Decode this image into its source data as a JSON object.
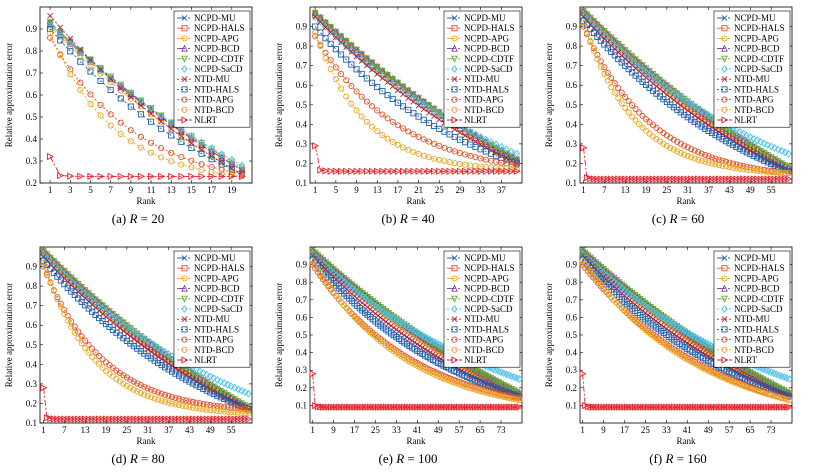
{
  "figure": {
    "methods": [
      {
        "name": "NCPD-MU",
        "color": "#1f5fa8",
        "marker": "x",
        "dash": "8,3,2,3"
      },
      {
        "name": "NCPD-HALS",
        "color": "#e0532a",
        "marker": "square",
        "dash": "8,3,2,3"
      },
      {
        "name": "NCPD-APG",
        "color": "#e9a825",
        "marker": "circle",
        "dash": "8,3,2,3"
      },
      {
        "name": "NCPD-BCD",
        "color": "#7b3a9a",
        "marker": "triangle",
        "dash": "8,3,2,3"
      },
      {
        "name": "NCPD-CDTF",
        "color": "#6aa83a",
        "marker": "tridown",
        "dash": "8,3,2,3"
      },
      {
        "name": "NCPD-SaCD",
        "color": "#4fc0e8",
        "marker": "diamond",
        "dash": "2,2"
      },
      {
        "name": "NTD-MU",
        "color": "#b0203a",
        "marker": "x",
        "dash": "2,2"
      },
      {
        "name": "NTD-HALS",
        "color": "#1f5fa8",
        "marker": "square",
        "dash": "2,2"
      },
      {
        "name": "NTD-APG",
        "color": "#e0532a",
        "marker": "circle",
        "dash": "2,2"
      },
      {
        "name": "NTD-BCD",
        "color": "#e9a825",
        "marker": "circle",
        "dash": "2,2"
      },
      {
        "name": "NLRT",
        "color": "#e6202a",
        "marker": "triright",
        "dash": "6,2,2,2"
      }
    ],
    "ylabel": "Relative approximation error",
    "xlabel": "Rank"
  },
  "chart_data": [
    {
      "type": "line",
      "caption": "(a) R = 20",
      "caption_prefix": "(a) ",
      "caption_var": "R",
      "caption_rest": " = 20",
      "xlim": [
        0,
        21
      ],
      "xticks": [
        1,
        3,
        5,
        7,
        9,
        11,
        13,
        15,
        17,
        19
      ],
      "ylim": [
        0.2,
        1.0
      ],
      "yticks": [
        0.2,
        0.3,
        0.4,
        0.5,
        0.6,
        0.7,
        0.8,
        0.9
      ],
      "xlabel": "Rank",
      "ylabel": "Relative approximation error",
      "x": [
        1,
        2,
        3,
        4,
        5,
        6,
        7,
        8,
        9,
        10,
        11,
        12,
        13,
        14,
        15,
        16,
        17,
        18,
        19,
        20
      ],
      "series": [
        {
          "name": "NCPD-MU",
          "start": 0.93,
          "final": 0.26,
          "k": 2.3
        },
        {
          "name": "NCPD-HALS",
          "start": 0.92,
          "final": 0.26,
          "k": 2.3
        },
        {
          "name": "NCPD-APG",
          "start": 0.91,
          "final": 0.24,
          "k": 2.2
        },
        {
          "name": "NCPD-BCD",
          "start": 0.93,
          "final": 0.26,
          "k": 2.3
        },
        {
          "name": "NCPD-CDTF",
          "start": 0.93,
          "final": 0.27,
          "k": 2.3
        },
        {
          "name": "NCPD-SaCD",
          "start": 0.92,
          "final": 0.28,
          "k": 2.1
        },
        {
          "name": "NTD-MU",
          "start": 0.96,
          "final": 0.24,
          "k": 1.6
        },
        {
          "name": "NTD-HALS",
          "start": 0.9,
          "final": 0.24,
          "k": 1.3
        },
        {
          "name": "NTD-APG",
          "start": 0.86,
          "final": 0.24,
          "k": 0.55
        },
        {
          "name": "NTD-BCD",
          "start": 0.88,
          "final": 0.23,
          "k": 0.4
        },
        {
          "name": "NLRT",
          "start": 0.32,
          "final": 0.23,
          "k": 0.1
        }
      ]
    },
    {
      "type": "line",
      "caption": "(b) R = 40",
      "caption_prefix": "(b) ",
      "caption_var": "R",
      "caption_rest": " = 40",
      "xlim": [
        0,
        41
      ],
      "xticks": [
        1,
        5,
        9,
        13,
        17,
        21,
        25,
        29,
        33,
        37
      ],
      "ylim": [
        0.1,
        1.0
      ],
      "yticks": [
        0.1,
        0.2,
        0.3,
        0.4,
        0.5,
        0.6,
        0.7,
        0.8,
        0.9
      ],
      "xlabel": "Rank",
      "ylabel": "Relative approximation error",
      "x": [
        1,
        40
      ],
      "series": [
        {
          "name": "NCPD-MU",
          "start": 0.97,
          "final": 0.22,
          "k": 2.2
        },
        {
          "name": "NCPD-HALS",
          "start": 0.96,
          "final": 0.21,
          "k": 2.1
        },
        {
          "name": "NCPD-APG",
          "start": 0.96,
          "final": 0.2,
          "k": 2.0
        },
        {
          "name": "NCPD-BCD",
          "start": 0.97,
          "final": 0.22,
          "k": 2.2
        },
        {
          "name": "NCPD-CDTF",
          "start": 0.97,
          "final": 0.22,
          "k": 2.2
        },
        {
          "name": "NCPD-SaCD",
          "start": 0.95,
          "final": 0.25,
          "k": 1.4
        },
        {
          "name": "NTD-MU",
          "start": 0.95,
          "final": 0.2,
          "k": 1.6
        },
        {
          "name": "NTD-HALS",
          "start": 0.9,
          "final": 0.2,
          "k": 1.0
        },
        {
          "name": "NTD-APG",
          "start": 0.85,
          "final": 0.19,
          "k": 0.5
        },
        {
          "name": "NTD-BCD",
          "start": 0.87,
          "final": 0.17,
          "k": 0.3
        },
        {
          "name": "NLRT",
          "start": 0.29,
          "final": 0.16,
          "k": 0.1
        }
      ]
    },
    {
      "type": "line",
      "caption": "(c) R = 60",
      "caption_prefix": "(c) ",
      "caption_var": "R",
      "caption_rest": " = 60",
      "xlim": [
        0,
        61
      ],
      "xticks": [
        1,
        7,
        13,
        19,
        25,
        31,
        37,
        43,
        49,
        55
      ],
      "ylim": [
        0.1,
        1.0
      ],
      "yticks": [
        0.1,
        0.2,
        0.3,
        0.4,
        0.5,
        0.6,
        0.7,
        0.8,
        0.9
      ],
      "xlabel": "Rank",
      "ylabel": "Relative approximation error",
      "x": [
        1,
        60
      ],
      "series": [
        {
          "name": "NCPD-MU",
          "start": 0.97,
          "final": 0.17,
          "k": 2.0
        },
        {
          "name": "NCPD-HALS",
          "start": 0.97,
          "final": 0.17,
          "k": 2.0
        },
        {
          "name": "NCPD-APG",
          "start": 0.97,
          "final": 0.16,
          "k": 1.9
        },
        {
          "name": "NCPD-BCD",
          "start": 0.98,
          "final": 0.18,
          "k": 2.1
        },
        {
          "name": "NCPD-CDTF",
          "start": 0.98,
          "final": 0.18,
          "k": 2.1
        },
        {
          "name": "NCPD-SaCD",
          "start": 0.96,
          "final": 0.25,
          "k": 1.2
        },
        {
          "name": "NTD-MU",
          "start": 0.95,
          "final": 0.16,
          "k": 1.5
        },
        {
          "name": "NTD-HALS",
          "start": 0.93,
          "final": 0.16,
          "k": 1.1
        },
        {
          "name": "NTD-APG",
          "start": 0.9,
          "final": 0.15,
          "k": 0.4
        },
        {
          "name": "NTD-BCD",
          "start": 0.92,
          "final": 0.15,
          "k": 0.3
        },
        {
          "name": "NLRT",
          "start": 0.28,
          "final": 0.12,
          "k": 0.08
        }
      ]
    },
    {
      "type": "line",
      "caption": "(d) R = 80",
      "caption_prefix": "(d) ",
      "caption_var": "R",
      "caption_rest": " = 80",
      "xlim": [
        0,
        61
      ],
      "xticks": [
        1,
        7,
        13,
        19,
        25,
        31,
        37,
        43,
        49,
        55
      ],
      "ylim": [
        0.1,
        1.0
      ],
      "yticks": [
        0.1,
        0.2,
        0.3,
        0.4,
        0.5,
        0.6,
        0.7,
        0.8,
        0.9
      ],
      "xlabel": "Rank",
      "ylabel": "Relative approximation error",
      "x": [
        1,
        60
      ],
      "series": [
        {
          "name": "NCPD-MU",
          "start": 0.97,
          "final": 0.17,
          "k": 2.0
        },
        {
          "name": "NCPD-HALS",
          "start": 0.97,
          "final": 0.17,
          "k": 2.0
        },
        {
          "name": "NCPD-APG",
          "start": 0.97,
          "final": 0.16,
          "k": 1.9
        },
        {
          "name": "NCPD-BCD",
          "start": 0.98,
          "final": 0.18,
          "k": 2.1
        },
        {
          "name": "NCPD-CDTF",
          "start": 0.98,
          "final": 0.18,
          "k": 2.1
        },
        {
          "name": "NCPD-SaCD",
          "start": 0.96,
          "final": 0.25,
          "k": 1.3
        },
        {
          "name": "NTD-MU",
          "start": 0.95,
          "final": 0.17,
          "k": 1.5
        },
        {
          "name": "NTD-HALS",
          "start": 0.93,
          "final": 0.17,
          "k": 1.1
        },
        {
          "name": "NTD-APG",
          "start": 0.9,
          "final": 0.17,
          "k": 0.35
        },
        {
          "name": "NTD-BCD",
          "start": 0.92,
          "final": 0.15,
          "k": 0.3
        },
        {
          "name": "NLRT",
          "start": 0.28,
          "final": 0.12,
          "k": 0.08
        }
      ]
    },
    {
      "type": "line",
      "caption": "(e) R = 100",
      "caption_prefix": "(e) ",
      "caption_var": "R",
      "caption_rest": " = 100",
      "xlim": [
        0,
        81
      ],
      "xticks": [
        1,
        9,
        17,
        25,
        33,
        41,
        49,
        57,
        65,
        73
      ],
      "ylim": [
        0.0,
        1.0
      ],
      "yticks": [
        0.1,
        0.2,
        0.3,
        0.4,
        0.5,
        0.6,
        0.7,
        0.8,
        0.9
      ],
      "xlabel": "Rank",
      "ylabel": "Relative approximation error",
      "x": [
        1,
        80
      ],
      "series": [
        {
          "name": "NCPD-MU",
          "start": 0.97,
          "final": 0.16,
          "k": 1.9
        },
        {
          "name": "NCPD-HALS",
          "start": 0.97,
          "final": 0.16,
          "k": 1.9
        },
        {
          "name": "NCPD-APG",
          "start": 0.97,
          "final": 0.15,
          "k": 1.8
        },
        {
          "name": "NCPD-BCD",
          "start": 0.98,
          "final": 0.17,
          "k": 2.0
        },
        {
          "name": "NCPD-CDTF",
          "start": 0.98,
          "final": 0.17,
          "k": 2.0
        },
        {
          "name": "NCPD-SaCD",
          "start": 0.96,
          "final": 0.25,
          "k": 1.2
        },
        {
          "name": "NTD-MU",
          "start": 0.95,
          "final": 0.14,
          "k": 1.3
        },
        {
          "name": "NTD-HALS",
          "start": 0.93,
          "final": 0.15,
          "k": 0.9
        },
        {
          "name": "NTD-APG",
          "start": 0.9,
          "final": 0.14,
          "k": 0.6
        },
        {
          "name": "NTD-BCD",
          "start": 0.92,
          "final": 0.13,
          "k": 0.55
        },
        {
          "name": "NLRT",
          "start": 0.28,
          "final": 0.09,
          "k": 0.07
        }
      ]
    },
    {
      "type": "line",
      "caption": "(f) R = 160",
      "caption_prefix": "(f) ",
      "caption_var": "R",
      "caption_rest": " = 160",
      "xlim": [
        0,
        81
      ],
      "xticks": [
        1,
        9,
        17,
        25,
        33,
        41,
        49,
        57,
        65,
        73
      ],
      "ylim": [
        0.0,
        1.0
      ],
      "yticks": [
        0.1,
        0.2,
        0.3,
        0.4,
        0.5,
        0.6,
        0.7,
        0.8,
        0.9
      ],
      "xlabel": "Rank",
      "ylabel": "Relative approximation error",
      "x": [
        1,
        80
      ],
      "series": [
        {
          "name": "NCPD-MU",
          "start": 0.97,
          "final": 0.16,
          "k": 1.9
        },
        {
          "name": "NCPD-HALS",
          "start": 0.97,
          "final": 0.16,
          "k": 1.9
        },
        {
          "name": "NCPD-APG",
          "start": 0.97,
          "final": 0.15,
          "k": 1.8
        },
        {
          "name": "NCPD-BCD",
          "start": 0.98,
          "final": 0.17,
          "k": 2.0
        },
        {
          "name": "NCPD-CDTF",
          "start": 0.98,
          "final": 0.17,
          "k": 2.0
        },
        {
          "name": "NCPD-SaCD",
          "start": 0.96,
          "final": 0.25,
          "k": 1.2
        },
        {
          "name": "NTD-MU",
          "start": 0.95,
          "final": 0.15,
          "k": 1.3
        },
        {
          "name": "NTD-HALS",
          "start": 0.93,
          "final": 0.15,
          "k": 1.0
        },
        {
          "name": "NTD-APG",
          "start": 0.9,
          "final": 0.13,
          "k": 0.8
        },
        {
          "name": "NTD-BCD",
          "start": 0.92,
          "final": 0.13,
          "k": 0.7
        },
        {
          "name": "NLRT",
          "start": 0.28,
          "final": 0.09,
          "k": 0.07
        }
      ]
    }
  ]
}
